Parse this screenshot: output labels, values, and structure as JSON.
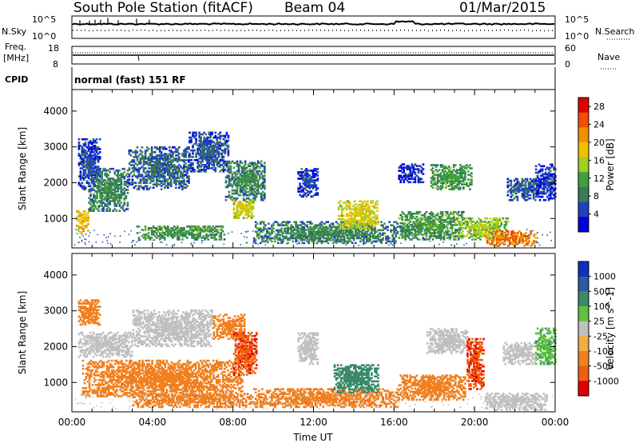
{
  "header": {
    "station": "South Pole Station (fitACF)",
    "beam": "Beam 04",
    "date": "01/Mar/2015"
  },
  "noise_panel": {
    "left_label": "N.Sky",
    "right_label": "N.Search",
    "left_ticks": [
      "10^5",
      "10^0"
    ],
    "right_ticks": [
      "10^5",
      "10^0"
    ]
  },
  "freq_panel": {
    "left_label_line1": "Freq.",
    "left_label_line2": "[MHz]",
    "left_ticks": [
      "18",
      "8"
    ],
    "right_label": "Nave",
    "right_ticks": [
      "60",
      "0"
    ]
  },
  "cpid_panel": {
    "label": "CPID",
    "mode_text": "normal (fast) 151 RF"
  },
  "colors": {
    "power": [
      "#0000e0",
      "#2040c0",
      "#3a7a5a",
      "#40a040",
      "#a0d020",
      "#f0c000",
      "#f09000",
      "#f05000",
      "#e00000"
    ],
    "velocity": [
      "#1030c0",
      "#2a5aa0",
      "#3a8a6a",
      "#60c040",
      "#c0c0c0",
      "#f0b040",
      "#f08020",
      "#f06010",
      "#e00000"
    ]
  },
  "chart_data": [
    {
      "type": "heatmap",
      "title": "Power",
      "ylabel": "Slant Range [km]",
      "yticks": [
        "1000",
        "2000",
        "3000",
        "4000"
      ],
      "ylim": [
        180,
        4600
      ],
      "xticks": [
        "00:00",
        "04:00",
        "08:00",
        "12:00",
        "16:00",
        "20:00",
        "00:00"
      ],
      "xlim_hours": [
        0,
        24
      ],
      "colorbar_label": "Power [dB]",
      "colorbar_ticks": [
        "4",
        "8",
        "12",
        "16",
        "20",
        "24",
        "28"
      ],
      "colorbar_range": [
        0,
        30
      ],
      "blobs": [
        {
          "t0": 0.3,
          "t1": 1.4,
          "r0": 1800,
          "r1": 3200,
          "v": 8
        },
        {
          "t0": 0.2,
          "t1": 0.8,
          "r0": 600,
          "r1": 1200,
          "v": 22
        },
        {
          "t0": 0.8,
          "t1": 2.8,
          "r0": 1200,
          "r1": 2400,
          "v": 12
        },
        {
          "t0": 2.8,
          "t1": 5.8,
          "r0": 1800,
          "r1": 3000,
          "v": 10
        },
        {
          "t0": 5.8,
          "t1": 7.8,
          "r0": 2300,
          "r1": 3400,
          "v": 9
        },
        {
          "t0": 3.2,
          "t1": 7.6,
          "r0": 400,
          "r1": 800,
          "v": 14
        },
        {
          "t0": 7.6,
          "t1": 9.6,
          "r0": 1500,
          "r1": 2600,
          "v": 12
        },
        {
          "t0": 8.0,
          "t1": 9.0,
          "r0": 1000,
          "r1": 1500,
          "v": 20
        },
        {
          "t0": 11.2,
          "t1": 12.2,
          "r0": 1600,
          "r1": 2400,
          "v": 8
        },
        {
          "t0": 9.0,
          "t1": 16.2,
          "r0": 300,
          "r1": 900,
          "v": 12
        },
        {
          "t0": 13.2,
          "t1": 15.2,
          "r0": 700,
          "r1": 1500,
          "v": 20
        },
        {
          "t0": 16.2,
          "t1": 19.4,
          "r0": 400,
          "r1": 1200,
          "v": 14
        },
        {
          "t0": 17.8,
          "t1": 19.8,
          "r0": 1800,
          "r1": 2500,
          "v": 14
        },
        {
          "t0": 19.2,
          "t1": 21.6,
          "r0": 400,
          "r1": 1000,
          "v": 18
        },
        {
          "t0": 20.5,
          "t1": 23.0,
          "r0": 220,
          "r1": 650,
          "v": 26
        },
        {
          "t0": 21.6,
          "t1": 23.2,
          "r0": 1500,
          "r1": 2100,
          "v": 9
        },
        {
          "t0": 23.0,
          "t1": 24.0,
          "r0": 1500,
          "r1": 2500,
          "v": 7
        },
        {
          "t0": 16.2,
          "t1": 17.4,
          "r0": 2000,
          "r1": 2500,
          "v": 7
        }
      ]
    },
    {
      "type": "heatmap",
      "title": "Velocity",
      "ylabel": "Slant Range [km]",
      "yticks": [
        "1000",
        "2000",
        "3000",
        "4000"
      ],
      "ylim": [
        180,
        4600
      ],
      "xticks": [
        "00:00",
        "04:00",
        "08:00",
        "12:00",
        "16:00",
        "20:00",
        "00:00"
      ],
      "xlabel": "Time UT",
      "xlim_hours": [
        0,
        24
      ],
      "colorbar_label": "Velocity [m s^-1]",
      "colorbar_ticks": [
        "1000",
        "500",
        "100",
        "25",
        "-25",
        "-100",
        "-500",
        "-1000"
      ],
      "blobs": [
        {
          "t0": 0.3,
          "t1": 1.4,
          "r0": 2600,
          "r1": 3300,
          "v": -200
        },
        {
          "t0": 0.3,
          "t1": 3.0,
          "r0": 1700,
          "r1": 2400,
          "v": 0
        },
        {
          "t0": 0.5,
          "t1": 8.5,
          "r0": 600,
          "r1": 1600,
          "v": -300
        },
        {
          "t0": 3.0,
          "t1": 7.0,
          "r0": 2000,
          "r1": 3000,
          "v": 0
        },
        {
          "t0": 7.0,
          "t1": 8.6,
          "r0": 2200,
          "r1": 2900,
          "v": -150
        },
        {
          "t0": 8.0,
          "t1": 9.2,
          "r0": 1200,
          "r1": 2400,
          "v": -900
        },
        {
          "t0": 3.0,
          "t1": 9.0,
          "r0": 300,
          "r1": 700,
          "v": -400
        },
        {
          "t0": 9.0,
          "t1": 16.2,
          "r0": 300,
          "r1": 800,
          "v": -400
        },
        {
          "t0": 13.0,
          "t1": 15.2,
          "r0": 700,
          "r1": 1500,
          "v": 300
        },
        {
          "t0": 11.2,
          "t1": 12.2,
          "r0": 1500,
          "r1": 2400,
          "v": 0
        },
        {
          "t0": 16.2,
          "t1": 19.5,
          "r0": 500,
          "r1": 1200,
          "v": -300
        },
        {
          "t0": 17.6,
          "t1": 19.6,
          "r0": 1800,
          "r1": 2500,
          "v": 0
        },
        {
          "t0": 19.6,
          "t1": 20.4,
          "r0": 800,
          "r1": 2200,
          "v": -900
        },
        {
          "t0": 20.5,
          "t1": 23.6,
          "r0": 220,
          "r1": 700,
          "v": 0
        },
        {
          "t0": 21.4,
          "t1": 23.0,
          "r0": 1500,
          "r1": 2100,
          "v": 0
        },
        {
          "t0": 23.0,
          "t1": 24.0,
          "r0": 1500,
          "r1": 2500,
          "v": 80
        }
      ]
    }
  ]
}
